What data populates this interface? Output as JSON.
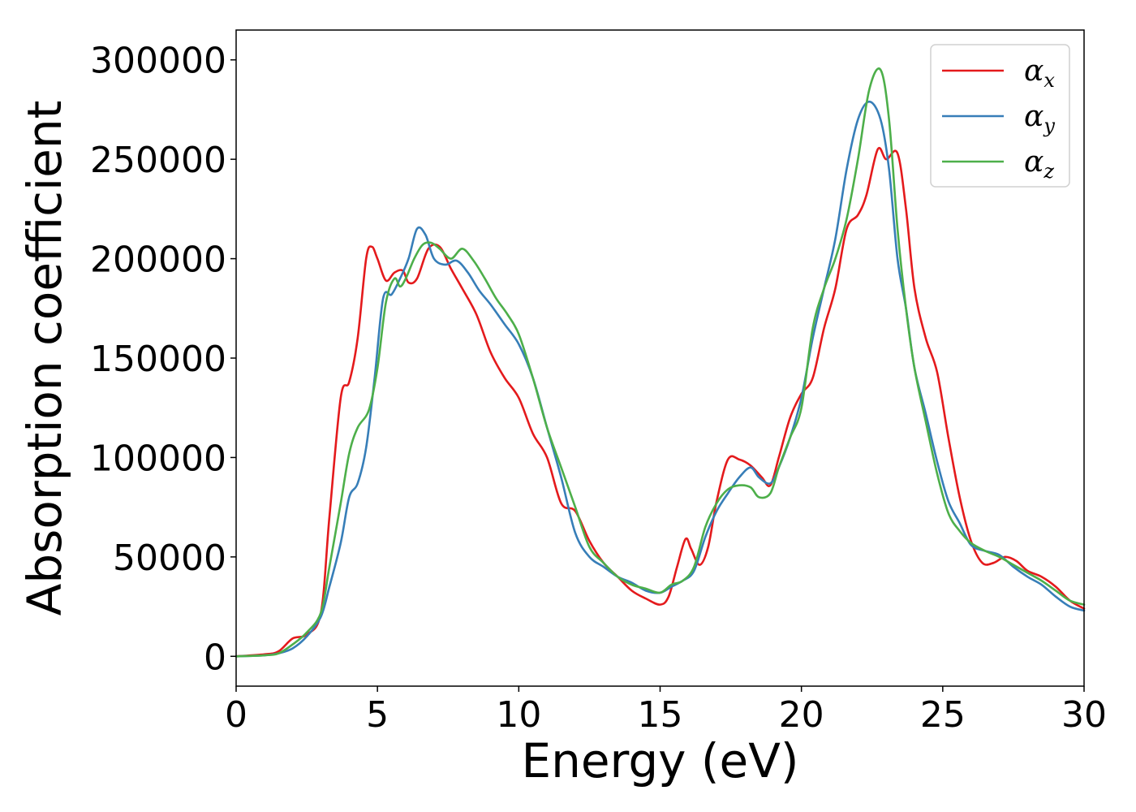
{
  "chart_data": {
    "type": "line",
    "title": "",
    "xlabel": "Energy (eV)",
    "ylabel": "Absorption coefficient",
    "xlim": [
      0,
      30
    ],
    "ylim": [
      -15000,
      315000
    ],
    "xticks": [
      0,
      5,
      10,
      15,
      20,
      25,
      30
    ],
    "yticks": [
      0,
      50000,
      100000,
      150000,
      200000,
      250000,
      300000
    ],
    "grid": false,
    "legend_position": "top-right",
    "series": [
      {
        "name": "αx",
        "label_base": "α",
        "label_sub": "x",
        "color": "#e41a1c",
        "x": [
          0,
          1,
          1.5,
          2,
          2.5,
          3,
          3.3,
          3.7,
          4.0,
          4.3,
          4.6,
          4.8,
          5.0,
          5.3,
          5.6,
          5.9,
          6.1,
          6.4,
          6.8,
          7.2,
          7.6,
          8.0,
          8.5,
          9.0,
          9.5,
          10.0,
          10.5,
          11.0,
          11.5,
          12.0,
          12.5,
          13.0,
          13.5,
          14.0,
          14.5,
          15.0,
          15.3,
          15.6,
          15.9,
          16.1,
          16.4,
          16.7,
          17.0,
          17.4,
          17.8,
          18.2,
          18.6,
          18.9,
          19.2,
          19.6,
          20.0,
          20.4,
          20.8,
          21.2,
          21.6,
          22.0,
          22.3,
          22.7,
          23.0,
          23.4,
          23.7,
          24.0,
          24.4,
          24.8,
          25.2,
          25.6,
          26.0,
          26.4,
          26.8,
          27.2,
          27.6,
          28.0,
          28.5,
          29.0,
          29.5,
          30.0
        ],
        "y": [
          0,
          1000,
          2500,
          9000,
          11000,
          22000,
          70000,
          130000,
          138000,
          160000,
          200000,
          206000,
          200000,
          189000,
          193000,
          194000,
          188000,
          190000,
          205000,
          206000,
          195000,
          185000,
          172000,
          153000,
          140000,
          130000,
          112000,
          100000,
          77000,
          73000,
          58000,
          47000,
          40000,
          33000,
          29000,
          26000,
          30000,
          45000,
          59000,
          54000,
          46000,
          55000,
          78000,
          99000,
          99000,
          96000,
          90000,
          86000,
          100000,
          120000,
          132000,
          140000,
          165000,
          185000,
          215000,
          222000,
          232000,
          255000,
          250000,
          253000,
          225000,
          185000,
          160000,
          143000,
          110000,
          80000,
          58000,
          47000,
          47000,
          50000,
          48000,
          43000,
          40000,
          35000,
          28000,
          24000
        ]
      },
      {
        "name": "αy",
        "label_base": "α",
        "label_sub": "y",
        "color": "#377eb8",
        "x": [
          0,
          1,
          1.5,
          2,
          2.5,
          3,
          3.3,
          3.7,
          4.0,
          4.3,
          4.6,
          4.9,
          5.2,
          5.5,
          5.8,
          6.1,
          6.4,
          6.7,
          7.0,
          7.4,
          7.8,
          8.2,
          8.6,
          9.0,
          9.5,
          10.0,
          10.5,
          11.0,
          11.5,
          12.0,
          12.5,
          13.0,
          13.5,
          14.0,
          14.5,
          15.0,
          15.4,
          15.8,
          16.2,
          16.6,
          17.0,
          17.4,
          17.8,
          18.2,
          18.5,
          18.9,
          19.2,
          19.6,
          20.0,
          20.4,
          20.8,
          21.2,
          21.6,
          22.0,
          22.4,
          22.8,
          23.1,
          23.4,
          23.7,
          24.0,
          24.4,
          24.8,
          25.2,
          25.6,
          26.0,
          26.5,
          27.0,
          27.5,
          28.0,
          28.5,
          29.0,
          29.5,
          30.0
        ],
        "y": [
          0,
          500,
          1500,
          4000,
          10000,
          20000,
          35000,
          57000,
          80000,
          87000,
          105000,
          140000,
          180000,
          182000,
          190000,
          200000,
          215000,
          212000,
          200000,
          197000,
          199000,
          193000,
          184000,
          177000,
          167000,
          157000,
          140000,
          115000,
          90000,
          62000,
          50000,
          45000,
          40000,
          37000,
          33000,
          32000,
          35000,
          38000,
          43000,
          60000,
          73000,
          82000,
          90000,
          95000,
          90000,
          87000,
          95000,
          110000,
          130000,
          160000,
          185000,
          210000,
          245000,
          270000,
          279000,
          270000,
          245000,
          200000,
          175000,
          145000,
          122000,
          98000,
          78000,
          67000,
          56000,
          53000,
          51000,
          45000,
          40000,
          36000,
          30000,
          25000,
          23000
        ]
      },
      {
        "name": "αz",
        "label_base": "α",
        "label_sub": "z",
        "color": "#4daf4a",
        "x": [
          0,
          1,
          1.5,
          2,
          2.5,
          3,
          3.3,
          3.7,
          4.0,
          4.3,
          4.7,
          5.0,
          5.3,
          5.6,
          5.8,
          6.0,
          6.3,
          6.6,
          6.9,
          7.2,
          7.6,
          8.0,
          8.4,
          8.8,
          9.2,
          9.6,
          10.0,
          10.5,
          11.0,
          11.5,
          12.0,
          12.5,
          13.0,
          13.5,
          14.0,
          14.5,
          15.0,
          15.4,
          15.8,
          16.2,
          16.6,
          17.0,
          17.4,
          17.8,
          18.2,
          18.5,
          18.9,
          19.2,
          19.6,
          20.0,
          20.4,
          20.8,
          21.2,
          21.6,
          22.0,
          22.4,
          22.8,
          23.1,
          23.4,
          23.7,
          24.0,
          24.4,
          24.8,
          25.2,
          25.6,
          26.0,
          26.5,
          27.0,
          27.5,
          28.0,
          28.5,
          29.0,
          29.5,
          30.0
        ],
        "y": [
          0,
          500,
          1500,
          6000,
          12000,
          22000,
          45000,
          77000,
          102000,
          115000,
          124000,
          145000,
          178000,
          190000,
          186000,
          190000,
          200000,
          207000,
          208000,
          205000,
          200000,
          205000,
          199000,
          190000,
          180000,
          172000,
          162000,
          140000,
          115000,
          95000,
          75000,
          55000,
          47000,
          40000,
          36000,
          34000,
          32000,
          36000,
          38000,
          45000,
          65000,
          77000,
          84000,
          86000,
          85000,
          80000,
          82000,
          95000,
          110000,
          125000,
          165000,
          185000,
          200000,
          220000,
          250000,
          285000,
          295000,
          270000,
          215000,
          175000,
          145000,
          118000,
          92000,
          72000,
          63000,
          57000,
          53000,
          50000,
          46000,
          42000,
          38000,
          33000,
          28000,
          26000
        ]
      }
    ]
  }
}
